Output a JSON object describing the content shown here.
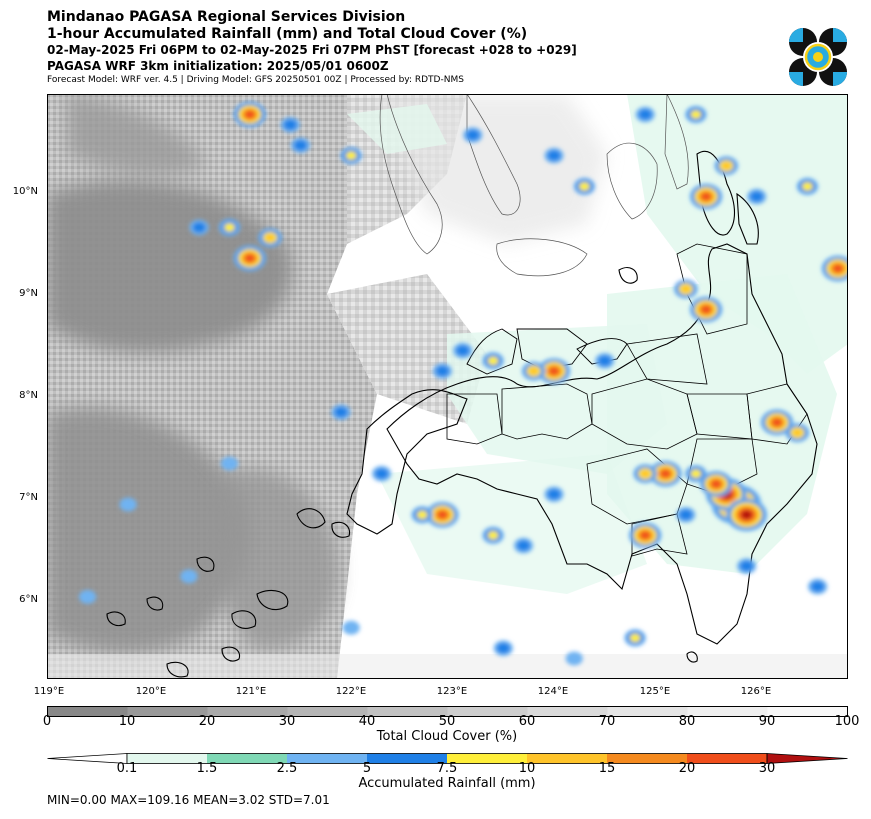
{
  "titles": {
    "line1": "Mindanao PAGASA Regional Services Division",
    "line2": "1-hour Accumulated Rainfall (mm) and Total Cloud Cover (%)",
    "line3": "02-May-2025 Fri 06PM to 02-May-2025 Fri 07PM PhST [forecast +028 to +029]",
    "line4": "PAGASA WRF 3km initialization: 2025/05/01 0600Z",
    "line5": "Forecast Model: WRF ver. 4.5 | Driving Model: GFS 20250501 00Z | Processed by: RDTD-NMS"
  },
  "logo": {
    "name": "PAGASA",
    "colors": [
      "#111111",
      "#29abe2",
      "#f7d117"
    ]
  },
  "map": {
    "lat_labels": [
      "10°N",
      "9°N",
      "8°N",
      "7°N",
      "6°N"
    ],
    "lon_labels": [
      "119°E",
      "120°E",
      "121°E",
      "122°E",
      "123°E",
      "124°E",
      "125°E",
      "126°E"
    ],
    "lat_range": [
      5.2,
      10.9
    ],
    "lon_range": [
      119.0,
      126.9
    ],
    "land_color": "#ffffff",
    "coast_color": "#000000"
  },
  "cloud_colorbar": {
    "label": "Total Cloud Cover (%)",
    "ticks": [
      "0",
      "10",
      "20",
      "30",
      "40",
      "50",
      "60",
      "70",
      "80",
      "90",
      "100"
    ],
    "colors": [
      "#888888",
      "#999999",
      "#a9a9a9",
      "#b5b5b5",
      "#c2c2c2",
      "#cecece",
      "#dadada",
      "#e5e5e5",
      "#efefef",
      "#f8f8f8"
    ]
  },
  "rain_colorbar": {
    "label": "Accumulated Rainfall (mm)",
    "ticks": [
      "0.1",
      "1.5",
      "2.5",
      "5",
      "7.5",
      "10",
      "15",
      "20",
      "30"
    ],
    "colors": [
      "#ffffff",
      "#e3f8ee",
      "#7fd8b5",
      "#6fb3f2",
      "#1f7fe6",
      "#ffef3a",
      "#ffc42a",
      "#f58a1f",
      "#f04e1b",
      "#b01010"
    ]
  },
  "stats": {
    "text": "MIN=0.00   MAX=109.16   MEAN=3.02   STD=7.01"
  },
  "chart_data": {
    "type": "heatmap",
    "title": "1-hour Accumulated Rainfall (mm) and Total Cloud Cover (%)",
    "fields": [
      "Total Cloud Cover (%)",
      "Accumulated Rainfall (mm)"
    ],
    "xlabel": "",
    "ylabel": "",
    "xlim": [
      119.0,
      126.9
    ],
    "ylim": [
      5.2,
      10.9
    ],
    "rain_stats": {
      "min": 0.0,
      "max": 109.16,
      "mean": 3.02,
      "std": 7.01
    },
    "rain_cells": [
      {
        "lon": 125.8,
        "lat": 6.9,
        "mm": 40
      },
      {
        "lon": 125.7,
        "lat": 7.0,
        "mm": 30
      },
      {
        "lon": 125.9,
        "lat": 6.8,
        "mm": 30
      },
      {
        "lon": 125.6,
        "lat": 7.1,
        "mm": 20
      },
      {
        "lon": 125.1,
        "lat": 7.2,
        "mm": 20
      },
      {
        "lon": 124.9,
        "lat": 7.2,
        "mm": 10
      },
      {
        "lon": 125.4,
        "lat": 7.2,
        "mm": 7.5
      },
      {
        "lon": 124.9,
        "lat": 6.6,
        "mm": 20
      },
      {
        "lon": 125.3,
        "lat": 6.8,
        "mm": 5
      },
      {
        "lon": 126.2,
        "lat": 7.7,
        "mm": 20
      },
      {
        "lon": 126.4,
        "lat": 7.6,
        "mm": 10
      },
      {
        "lon": 122.9,
        "lat": 6.8,
        "mm": 20
      },
      {
        "lon": 122.7,
        "lat": 6.8,
        "mm": 7.5
      },
      {
        "lon": 123.4,
        "lat": 6.6,
        "mm": 7.5
      },
      {
        "lon": 123.7,
        "lat": 6.5,
        "mm": 5
      },
      {
        "lon": 124.0,
        "lat": 7.0,
        "mm": 5
      },
      {
        "lon": 124.0,
        "lat": 8.2,
        "mm": 20
      },
      {
        "lon": 123.8,
        "lat": 8.2,
        "mm": 10
      },
      {
        "lon": 123.4,
        "lat": 8.3,
        "mm": 7.5
      },
      {
        "lon": 123.1,
        "lat": 8.4,
        "mm": 5
      },
      {
        "lon": 122.9,
        "lat": 8.2,
        "mm": 5
      },
      {
        "lon": 124.5,
        "lat": 8.3,
        "mm": 5
      },
      {
        "lon": 125.5,
        "lat": 8.8,
        "mm": 20
      },
      {
        "lon": 125.3,
        "lat": 9.0,
        "mm": 10
      },
      {
        "lon": 125.5,
        "lat": 9.9,
        "mm": 20
      },
      {
        "lon": 125.7,
        "lat": 10.2,
        "mm": 10
      },
      {
        "lon": 126.0,
        "lat": 9.9,
        "mm": 5
      },
      {
        "lon": 126.5,
        "lat": 10.0,
        "mm": 7.5
      },
      {
        "lon": 126.8,
        "lat": 9.2,
        "mm": 20
      },
      {
        "lon": 125.4,
        "lat": 10.7,
        "mm": 7.5
      },
      {
        "lon": 121.0,
        "lat": 9.3,
        "mm": 20
      },
      {
        "lon": 121.2,
        "lat": 9.5,
        "mm": 10
      },
      {
        "lon": 120.8,
        "lat": 9.6,
        "mm": 7.5
      },
      {
        "lon": 120.5,
        "lat": 9.6,
        "mm": 5
      },
      {
        "lon": 121.0,
        "lat": 10.7,
        "mm": 20
      },
      {
        "lon": 121.4,
        "lat": 10.6,
        "mm": 5
      },
      {
        "lon": 121.5,
        "lat": 10.4,
        "mm": 5
      },
      {
        "lon": 122.0,
        "lat": 10.3,
        "mm": 7.5
      },
      {
        "lon": 123.2,
        "lat": 10.5,
        "mm": 5
      },
      {
        "lon": 124.0,
        "lat": 10.3,
        "mm": 5
      },
      {
        "lon": 124.3,
        "lat": 10.0,
        "mm": 7.5
      },
      {
        "lon": 124.9,
        "lat": 10.7,
        "mm": 5
      },
      {
        "lon": 125.9,
        "lat": 6.3,
        "mm": 5
      },
      {
        "lon": 126.6,
        "lat": 6.1,
        "mm": 5
      },
      {
        "lon": 124.8,
        "lat": 5.6,
        "mm": 7.5
      },
      {
        "lon": 122.3,
        "lat": 7.2,
        "mm": 5
      },
      {
        "lon": 121.9,
        "lat": 7.8,
        "mm": 5
      },
      {
        "lon": 120.8,
        "lat": 7.3,
        "mm": 2.5
      },
      {
        "lon": 119.8,
        "lat": 6.9,
        "mm": 2.5
      },
      {
        "lon": 120.4,
        "lat": 6.2,
        "mm": 2.5
      },
      {
        "lon": 123.5,
        "lat": 5.5,
        "mm": 5
      },
      {
        "lon": 124.2,
        "lat": 5.4,
        "mm": 2.5
      },
      {
        "lon": 119.4,
        "lat": 6.0,
        "mm": 2.5
      },
      {
        "lon": 122.0,
        "lat": 5.7,
        "mm": 2.5
      }
    ]
  }
}
